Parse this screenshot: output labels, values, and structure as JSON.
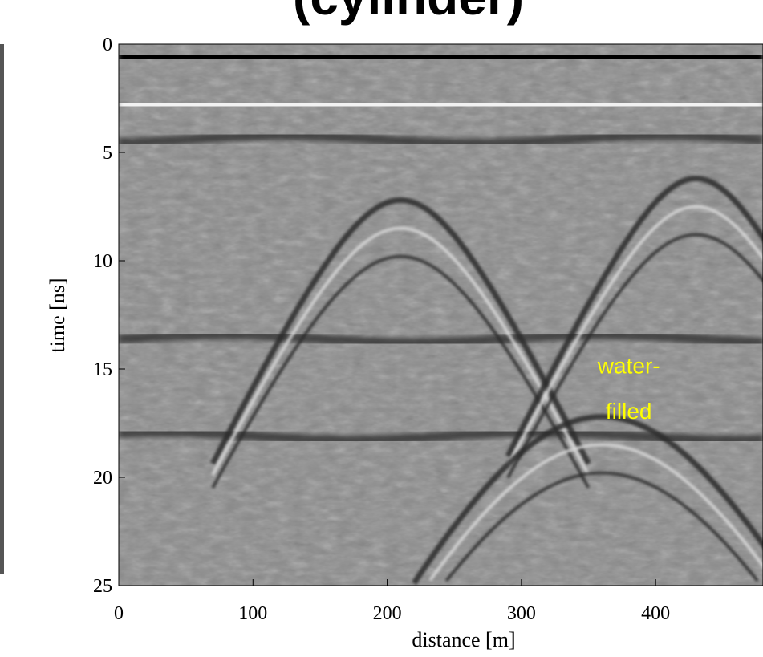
{
  "chart_data": {
    "type": "heatmap",
    "title": "(cylinder)",
    "xlabel": "distance [m]",
    "ylabel": "time [ns]",
    "xlim": [
      0,
      480
    ],
    "ylim": [
      25,
      0
    ],
    "x_ticks": [
      0,
      100,
      200,
      300,
      400
    ],
    "y_ticks": [
      0,
      5,
      10,
      15,
      20,
      25
    ],
    "colormap": "grayscale",
    "horizontal_bands": [
      {
        "time": 0.6,
        "tone": "black"
      },
      {
        "time": 2.8,
        "tone": "white"
      },
      {
        "time": 4.4,
        "tone": "dark"
      },
      {
        "time": 13.6,
        "tone": "dark"
      },
      {
        "time": 18.1,
        "tone": "dark"
      }
    ],
    "hyperbolas": [
      {
        "apex_distance": 210,
        "apex_time": 7.2,
        "tone": "dark"
      },
      {
        "apex_distance": 430,
        "apex_time": 6.2,
        "tone": "dark"
      },
      {
        "apex_distance": 360,
        "apex_time": 17.2,
        "tone": "dark"
      }
    ],
    "annotations": [
      {
        "text": "water-",
        "x": 380,
        "y": 15.2
      },
      {
        "text": "filled",
        "x": 380,
        "y": 17.3
      }
    ]
  },
  "colors": {
    "annotation": "#ffff00",
    "background_gray": "#8a8a8a"
  }
}
